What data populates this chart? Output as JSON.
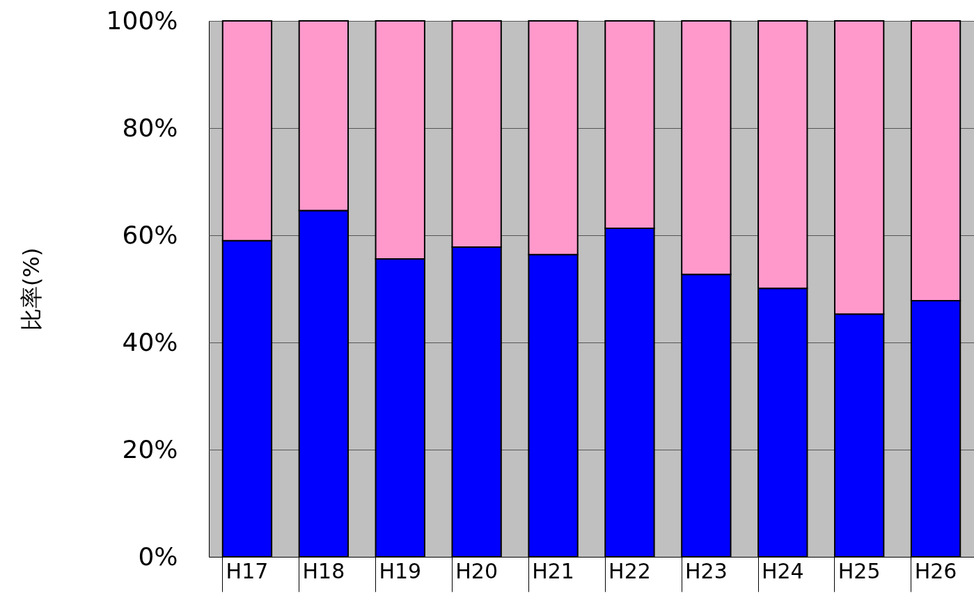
{
  "chart_data": {
    "type": "bar",
    "stacked": true,
    "ylabel": "比率(%)",
    "categories": [
      "H17",
      "H18",
      "H19",
      "H20",
      "H21",
      "H22",
      "H23",
      "H24",
      "H25",
      "H26"
    ],
    "series": [
      {
        "color": "#0000ff",
        "values": [
          59.0,
          64.6,
          55.6,
          57.8,
          56.4,
          61.3,
          52.7,
          50.1,
          45.3,
          47.8
        ]
      },
      {
        "color": "#ff99cc",
        "values": [
          41.0,
          35.4,
          44.4,
          42.2,
          43.6,
          38.7,
          47.3,
          49.9,
          54.7,
          52.2
        ]
      }
    ],
    "ylim": [
      0,
      100
    ],
    "yticks": [
      {
        "value": 0,
        "label": "0%"
      },
      {
        "value": 20,
        "label": "20%"
      },
      {
        "value": 40,
        "label": "40%"
      },
      {
        "value": 60,
        "label": "60%"
      },
      {
        "value": 80,
        "label": "80%"
      },
      {
        "value": 100,
        "label": "100%"
      }
    ],
    "grid": "y"
  }
}
